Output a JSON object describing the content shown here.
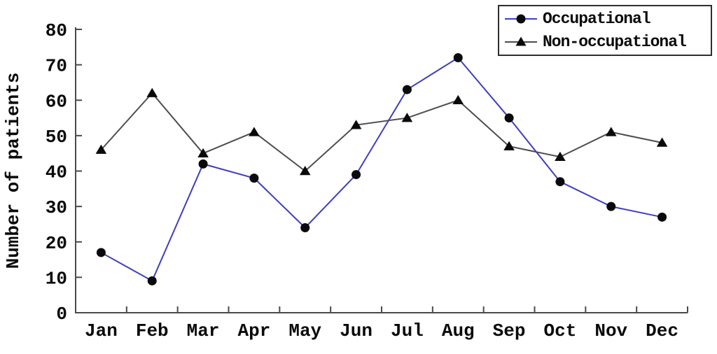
{
  "chart_data": {
    "type": "line",
    "title": "",
    "xlabel": "",
    "ylabel": "Number of patients",
    "categories": [
      "Jan",
      "Feb",
      "Mar",
      "Apr",
      "May",
      "Jun",
      "Jul",
      "Aug",
      "Sep",
      "Oct",
      "Nov",
      "Dec"
    ],
    "ylim": [
      0,
      80
    ],
    "yticks": [
      0,
      10,
      20,
      30,
      40,
      50,
      60,
      70,
      80
    ],
    "grid": false,
    "legend_position": "top-right",
    "series": [
      {
        "name": "Occupational",
        "marker": "circle",
        "line_color": "#3e3ebe",
        "marker_color": "#0a0a0a",
        "values": [
          17,
          9,
          42,
          38,
          24,
          39,
          63,
          72,
          55,
          37,
          30,
          27
        ]
      },
      {
        "name": "Non-occupational",
        "marker": "triangle",
        "line_color": "#4d4d4d",
        "marker_color": "#0a0a0a",
        "values": [
          46,
          62,
          45,
          51,
          40,
          53,
          55,
          60,
          47,
          44,
          51,
          48
        ]
      }
    ]
  },
  "colors": {
    "background": "#ffffff",
    "axis": "#4a4a4a",
    "text": "#0a0a0a"
  }
}
